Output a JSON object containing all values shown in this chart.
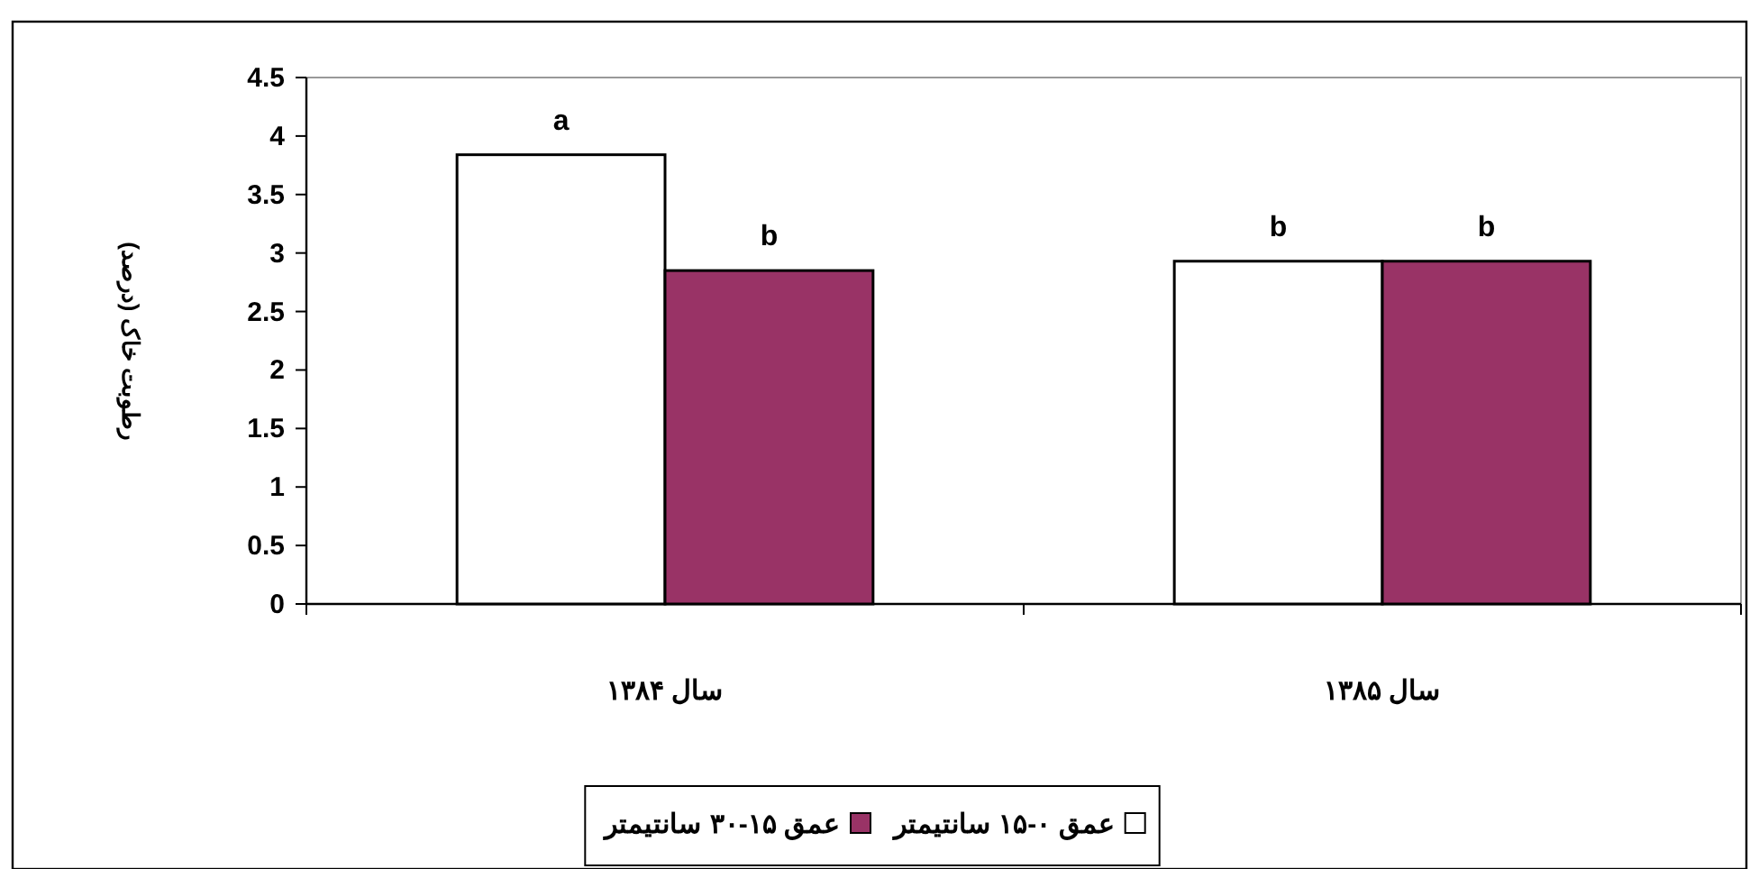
{
  "chart_data": {
    "type": "bar",
    "ylabel": "رطوبت خاک (درصد)",
    "categories": [
      "سال ۱۳۸۴",
      "سال ۱۳۸۵"
    ],
    "series": [
      {
        "name": "عمق ۰-۱۵ سانتیمتر",
        "color": "#ffffff",
        "values": [
          3.84,
          2.93
        ],
        "value_labels": [
          "a",
          "b"
        ]
      },
      {
        "name": "عمق ۱۵-۳۰ سانتیمتر",
        "color": "#993366",
        "values": [
          2.85,
          2.93
        ],
        "value_labels": [
          "b",
          "b"
        ]
      }
    ],
    "ylim": [
      0,
      4.5
    ],
    "yticks": [
      0,
      0.5,
      1,
      1.5,
      2,
      2.5,
      3,
      3.5,
      4,
      4.5
    ],
    "grid": false,
    "legend": "bottom"
  }
}
